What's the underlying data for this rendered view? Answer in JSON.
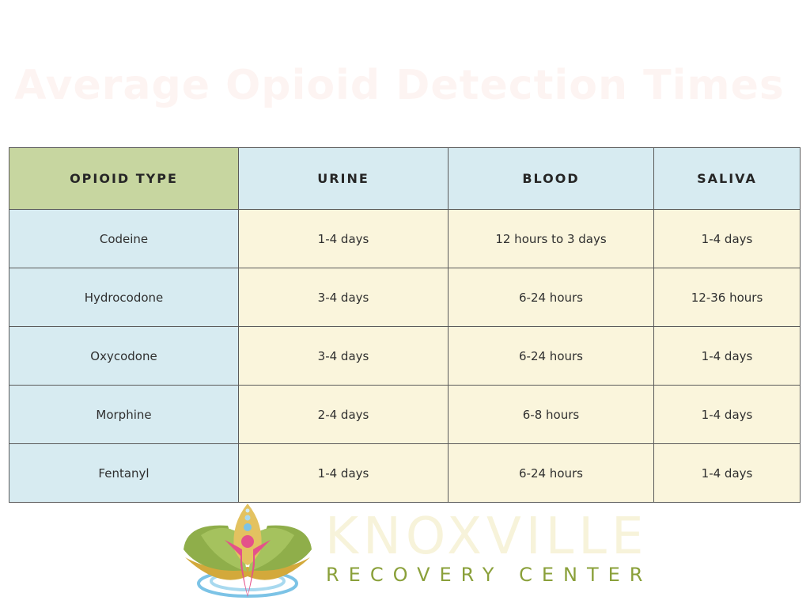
{
  "title": "Average Opioid Detection Times",
  "table": {
    "headers": [
      "OPIOID TYPE",
      "URINE",
      "BLOOD",
      "SALIVA"
    ],
    "rows": [
      [
        "Codeine",
        "1-4 days",
        "12 hours to 3 days",
        "1-4 days"
      ],
      [
        "Hydrocodone",
        "3-4 days",
        "6-24 hours",
        "12-36 hours"
      ],
      [
        "Oxycodone",
        "3-4 days",
        "6-24 hours",
        "1-4 days"
      ],
      [
        "Morphine",
        "2-4 days",
        "6-8 hours",
        "1-4 days"
      ],
      [
        "Fentanyl",
        "1-4 days",
        "6-24 hours",
        "1-4 days"
      ]
    ]
  },
  "logo": {
    "name": "KNOXVILLE",
    "subtitle": "RECOVERY CENTER",
    "icon": "lotus-person-icon"
  },
  "colors": {
    "header_type": "#c7d6a0",
    "header_other": "#d7ebf1",
    "first_column": "#d7ebf1",
    "value_cells": "#faf5dc",
    "title": "#fdf4f2",
    "brand_green": "#8aa03a"
  }
}
